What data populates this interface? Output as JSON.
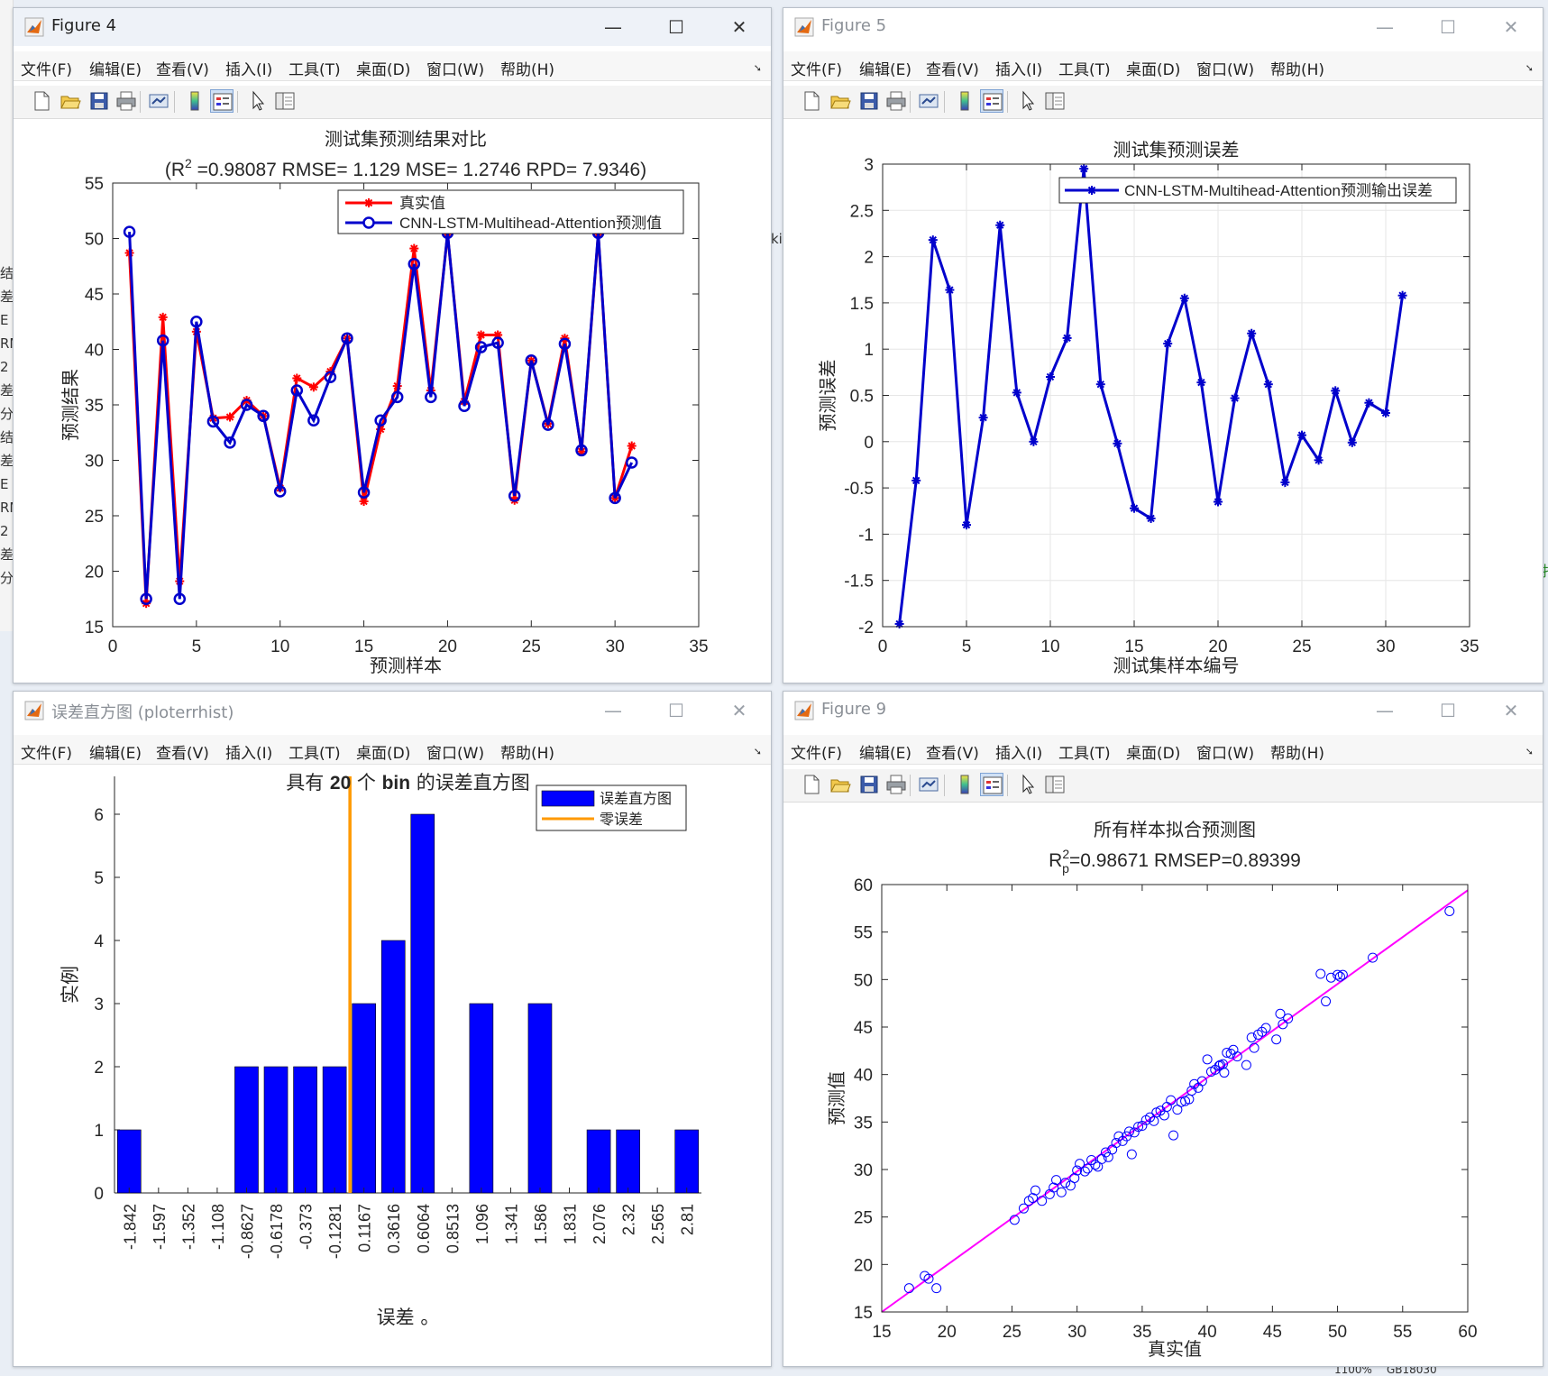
{
  "colors": {
    "red": "#ff0000",
    "blue": "#0000ff",
    "navy": "#0000cc",
    "orange": "#ff9900",
    "magenta": "#ff00ff",
    "grid": "#e6e6e6"
  },
  "menus": [
    "文件(F)",
    "编辑(E)",
    "查看(V)",
    "插入(I)",
    "工具(T)",
    "桌面(D)",
    "窗口(W)",
    "帮助(H)"
  ],
  "toolbar_icons": [
    "new-figure-icon",
    "open-file-icon",
    "save-icon",
    "print-icon",
    "link-icon",
    "colorbar-icon",
    "legend-icon",
    "pointer-icon",
    "property-inspector-icon"
  ],
  "win1": {
    "title": "Figure 4",
    "chart_data": {
      "type": "line",
      "title": "测试集预测结果对比",
      "subtitle_parts": [
        "(R",
        "2",
        " =0.98087 RMSE= 1.129 MSE= 1.2746 RPD= 7.9346)"
      ],
      "xlabel": "预测样本",
      "ylabel": "预测结果",
      "xlim": [
        0,
        35
      ],
      "ylim": [
        15,
        55
      ],
      "xticks": [
        0,
        5,
        10,
        15,
        20,
        25,
        30,
        35
      ],
      "yticks": [
        15,
        20,
        25,
        30,
        35,
        40,
        45,
        50,
        55
      ],
      "x": [
        1,
        2,
        3,
        4,
        5,
        6,
        7,
        8,
        9,
        10,
        11,
        12,
        13,
        14,
        15,
        16,
        17,
        18,
        19,
        20,
        21,
        22,
        23,
        24,
        25,
        26,
        27,
        28,
        29,
        30,
        31
      ],
      "series": [
        {
          "name": "真实值",
          "values": [
            48.7,
            17.1,
            42.9,
            19.1,
            41.6,
            33.8,
            33.9,
            35.4,
            34.0,
            27.5,
            37.4,
            36.6,
            38.0,
            41.0,
            26.3,
            32.8,
            36.7,
            49.1,
            36.3,
            50.4,
            35.3,
            41.3,
            41.3,
            26.4,
            39.0,
            33.3,
            41.0,
            30.8,
            50.4,
            26.6,
            31.3
          ]
        },
        {
          "name": "CNN-LSTM-Multihead-Attention预测值",
          "values": [
            50.6,
            17.5,
            40.8,
            17.5,
            42.5,
            33.5,
            31.6,
            35.0,
            34.0,
            27.2,
            36.3,
            33.6,
            37.5,
            41.0,
            27.1,
            33.6,
            35.7,
            47.7,
            35.7,
            50.5,
            34.9,
            40.2,
            40.6,
            26.8,
            39.0,
            33.2,
            40.5,
            30.9,
            50.5,
            26.6,
            29.8
          ]
        }
      ]
    }
  },
  "win2": {
    "title": "Figure 5",
    "chart_data": {
      "type": "line",
      "title": "测试集预测误差",
      "xlabel": "测试集样本编号",
      "ylabel": "预测误差",
      "xlim": [
        0,
        35
      ],
      "ylim": [
        -2,
        3
      ],
      "xticks": [
        0,
        5,
        10,
        15,
        20,
        25,
        30,
        35
      ],
      "yticks": [
        -2,
        -1.5,
        -1,
        -0.5,
        0,
        0.5,
        1,
        1.5,
        2,
        2.5,
        3
      ],
      "ytick_labels": [
        "-2",
        "-1.5",
        "-1",
        "-0.5",
        "0",
        "0.5",
        "1",
        "1.5",
        "2",
        "2.5",
        "3"
      ],
      "x": [
        1,
        2,
        3,
        4,
        5,
        6,
        7,
        8,
        9,
        10,
        11,
        12,
        13,
        14,
        15,
        16,
        17,
        18,
        19,
        20,
        21,
        22,
        23,
        24,
        25,
        26,
        27,
        28,
        29,
        30,
        31
      ],
      "series": [
        {
          "name": "CNN-LSTM-Multihead-Attention预测输出误差",
          "values": [
            -1.97,
            -0.42,
            2.18,
            1.64,
            -0.9,
            0.26,
            2.34,
            0.53,
            0.0,
            0.7,
            1.12,
            2.95,
            0.62,
            -0.02,
            -0.72,
            -0.83,
            1.06,
            1.55,
            0.64,
            -0.65,
            0.47,
            1.17,
            0.62,
            -0.44,
            0.07,
            -0.2,
            0.55,
            -0.01,
            0.42,
            0.31,
            1.58
          ]
        }
      ]
    }
  },
  "win3": {
    "title": "误差直方图 (ploterrhist)",
    "chart_data": {
      "type": "bar",
      "title_parts": [
        "具有 ",
        "20",
        " 个 ",
        "bin",
        " 的误差直方图"
      ],
      "xlabel": "误差 。",
      "ylabel": "实例",
      "ylim": [
        0,
        6.6
      ],
      "yticks": [
        0,
        1,
        2,
        3,
        4,
        5,
        6
      ],
      "categories": [
        "-1.842",
        "-1.597",
        "-1.352",
        "-1.108",
        "-0.8627",
        "-0.6178",
        "-0.373",
        "-0.1281",
        "0.1167",
        "0.3616",
        "0.6064",
        "0.8513",
        "1.096",
        "1.341",
        "1.586",
        "1.831",
        "2.076",
        "2.32",
        "2.565",
        "2.81"
      ],
      "values": [
        1,
        0,
        0,
        0,
        2,
        2,
        2,
        2,
        3,
        4,
        6,
        0,
        3,
        0,
        3,
        0,
        1,
        1,
        0,
        1
      ],
      "zero_line": 0,
      "legend": [
        "误差直方图",
        "零误差"
      ]
    }
  },
  "win4": {
    "title": "Figure 9",
    "chart_data": {
      "type": "scatter",
      "title": "所有样本拟合预测图",
      "subtitle_parts": [
        "R",
        "2",
        "p",
        "=0.98671  RMSEP=0.89399"
      ],
      "xlabel": "真实值",
      "ylabel": "预测值",
      "xlim": [
        15,
        60
      ],
      "ylim": [
        15,
        60
      ],
      "xticks": [
        15,
        20,
        25,
        30,
        35,
        40,
        45,
        50,
        55,
        60
      ],
      "yticks": [
        15,
        20,
        25,
        30,
        35,
        40,
        45,
        50,
        55,
        60
      ],
      "fit_line": [
        [
          15,
          15
        ],
        [
          60,
          59.4
        ]
      ],
      "points": [
        [
          17.1,
          17.5
        ],
        [
          18.3,
          18.8
        ],
        [
          18.6,
          18.5
        ],
        [
          19.2,
          17.5
        ],
        [
          25.2,
          24.7
        ],
        [
          25.9,
          25.9
        ],
        [
          26.3,
          26.7
        ],
        [
          26.6,
          27.0
        ],
        [
          26.8,
          27.8
        ],
        [
          27.3,
          26.7
        ],
        [
          27.9,
          27.4
        ],
        [
          28.2,
          28.1
        ],
        [
          28.4,
          28.9
        ],
        [
          28.8,
          27.6
        ],
        [
          29.1,
          28.6
        ],
        [
          29.5,
          28.3
        ],
        [
          29.8,
          29.1
        ],
        [
          30.0,
          29.9
        ],
        [
          30.2,
          30.6
        ],
        [
          30.6,
          29.8
        ],
        [
          30.8,
          30.1
        ],
        [
          31.1,
          31.0
        ],
        [
          31.4,
          30.5
        ],
        [
          31.6,
          30.3
        ],
        [
          31.9,
          31.1
        ],
        [
          32.2,
          31.8
        ],
        [
          32.4,
          31.3
        ],
        [
          32.7,
          32.1
        ],
        [
          33.0,
          32.8
        ],
        [
          33.2,
          33.5
        ],
        [
          33.5,
          33.0
        ],
        [
          33.8,
          33.5
        ],
        [
          34.0,
          34.0
        ],
        [
          34.2,
          31.6
        ],
        [
          34.4,
          33.9
        ],
        [
          34.7,
          34.5
        ],
        [
          35.0,
          34.6
        ],
        [
          35.3,
          35.2
        ],
        [
          35.6,
          35.5
        ],
        [
          35.9,
          35.1
        ],
        [
          36.1,
          36.0
        ],
        [
          36.4,
          36.2
        ],
        [
          36.7,
          35.7
        ],
        [
          36.9,
          36.6
        ],
        [
          37.2,
          37.3
        ],
        [
          37.4,
          33.6
        ],
        [
          37.7,
          36.3
        ],
        [
          38.0,
          37.1
        ],
        [
          38.3,
          37.2
        ],
        [
          38.6,
          37.4
        ],
        [
          38.8,
          38.3
        ],
        [
          39.0,
          39.0
        ],
        [
          39.3,
          38.6
        ],
        [
          39.6,
          39.3
        ],
        [
          40.0,
          41.6
        ],
        [
          40.3,
          40.3
        ],
        [
          40.6,
          40.5
        ],
        [
          40.9,
          40.9
        ],
        [
          41.0,
          41.0
        ],
        [
          41.2,
          41.1
        ],
        [
          41.3,
          40.2
        ],
        [
          41.5,
          42.3
        ],
        [
          41.8,
          42.2
        ],
        [
          42.0,
          42.6
        ],
        [
          42.3,
          41.9
        ],
        [
          43.0,
          41.0
        ],
        [
          43.4,
          43.9
        ],
        [
          43.6,
          42.8
        ],
        [
          43.9,
          44.2
        ],
        [
          44.2,
          44.5
        ],
        [
          44.5,
          44.9
        ],
        [
          45.3,
          43.7
        ],
        [
          45.6,
          46.4
        ],
        [
          45.8,
          45.3
        ],
        [
          46.2,
          45.9
        ],
        [
          48.7,
          50.6
        ],
        [
          49.1,
          47.7
        ],
        [
          49.5,
          50.2
        ],
        [
          50.0,
          50.5
        ],
        [
          50.2,
          50.3
        ],
        [
          50.4,
          50.5
        ],
        [
          52.7,
          52.3
        ],
        [
          58.6,
          57.2
        ]
      ]
    }
  },
  "behind_text": {
    "left_chars": [
      "结",
      "差",
      "E",
      "RM",
      "2",
      "差",
      "分",
      "结",
      "差",
      "E",
      "RM",
      "2",
      "差",
      "分"
    ],
    "mid_char": "ki",
    "right_char": "扌",
    "bottom_right": [
      "1100%",
      "GB18030"
    ]
  }
}
